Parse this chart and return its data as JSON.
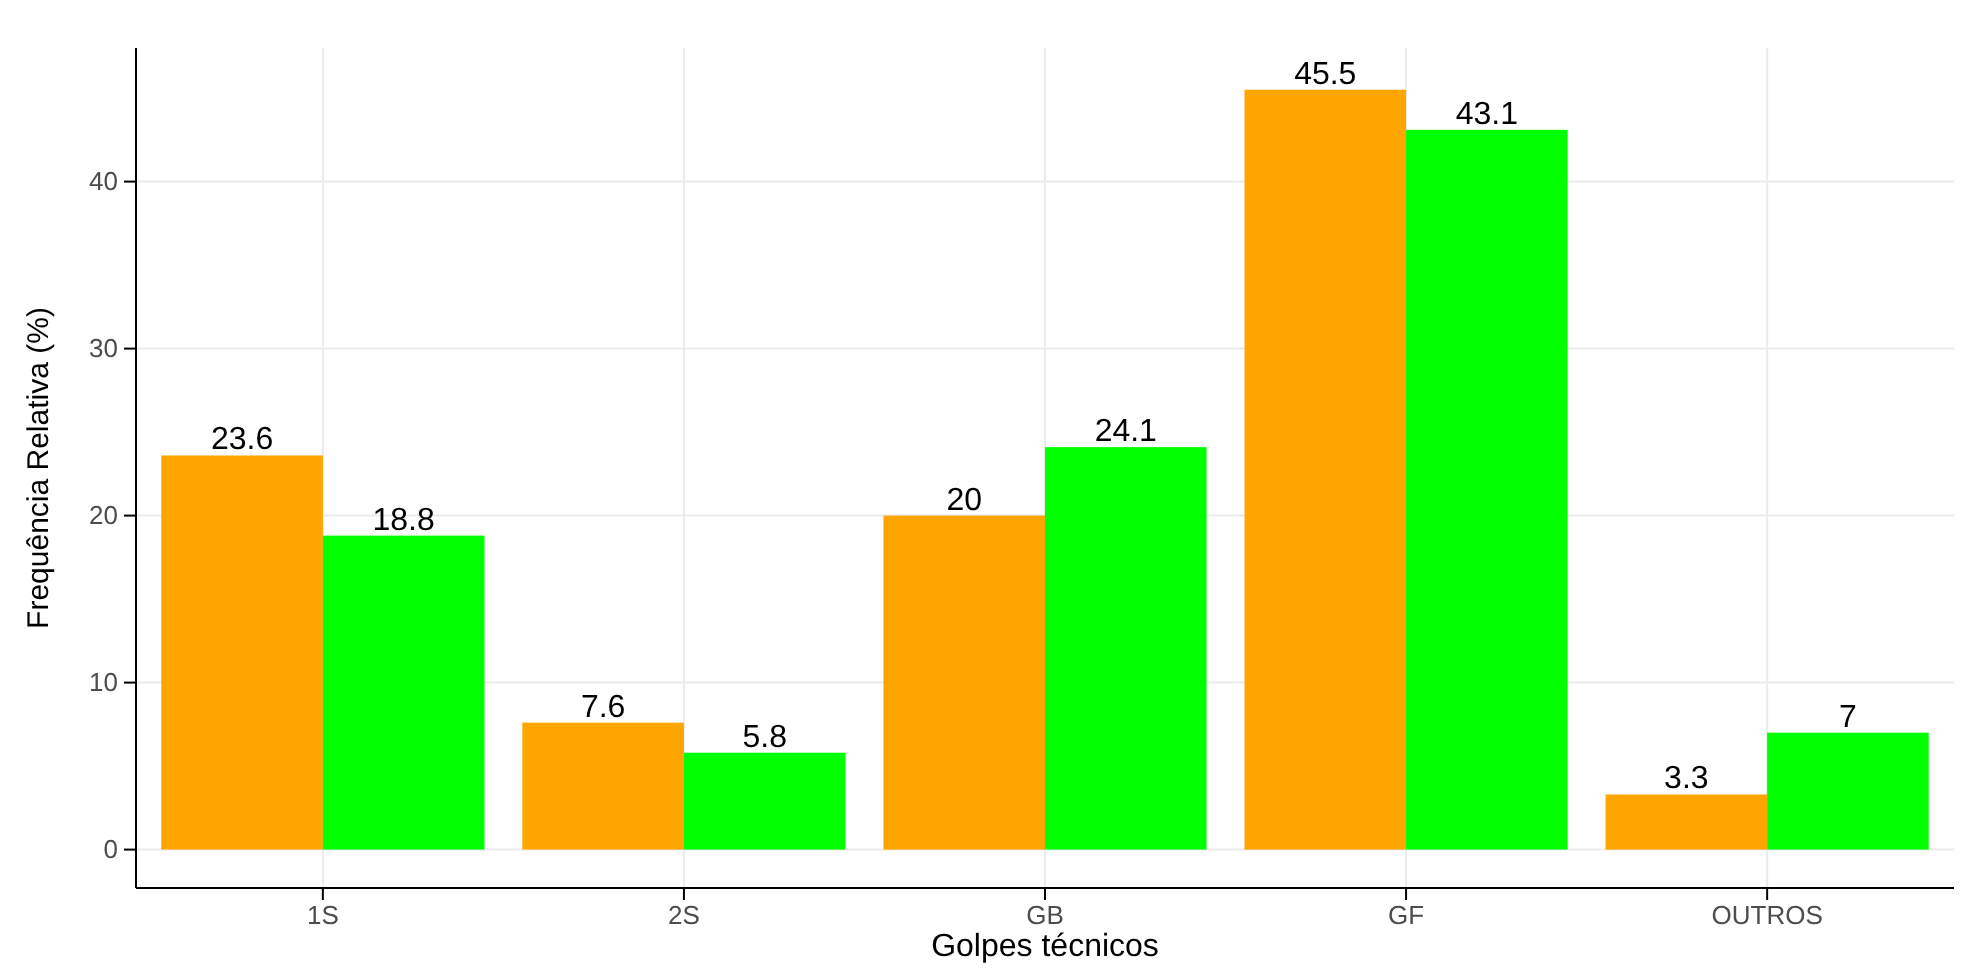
{
  "chart_data": {
    "type": "bar",
    "xlabel": "Golpes técnicos",
    "ylabel": "Frequência Relativa (%)",
    "categories": [
      "1S",
      "2S",
      "GB",
      "GF",
      "OUTROS"
    ],
    "series": [
      {
        "color": "#ffa500",
        "values": [
          23.6,
          7.6,
          20,
          45.5,
          3.3
        ]
      },
      {
        "color": "#00ff00",
        "values": [
          18.8,
          5.8,
          24.1,
          43.1,
          7
        ]
      }
    ],
    "ylim": [
      -2.3,
      48
    ],
    "yticks": [
      0,
      10,
      20,
      30,
      40
    ],
    "grid": true,
    "data_labels": true
  }
}
